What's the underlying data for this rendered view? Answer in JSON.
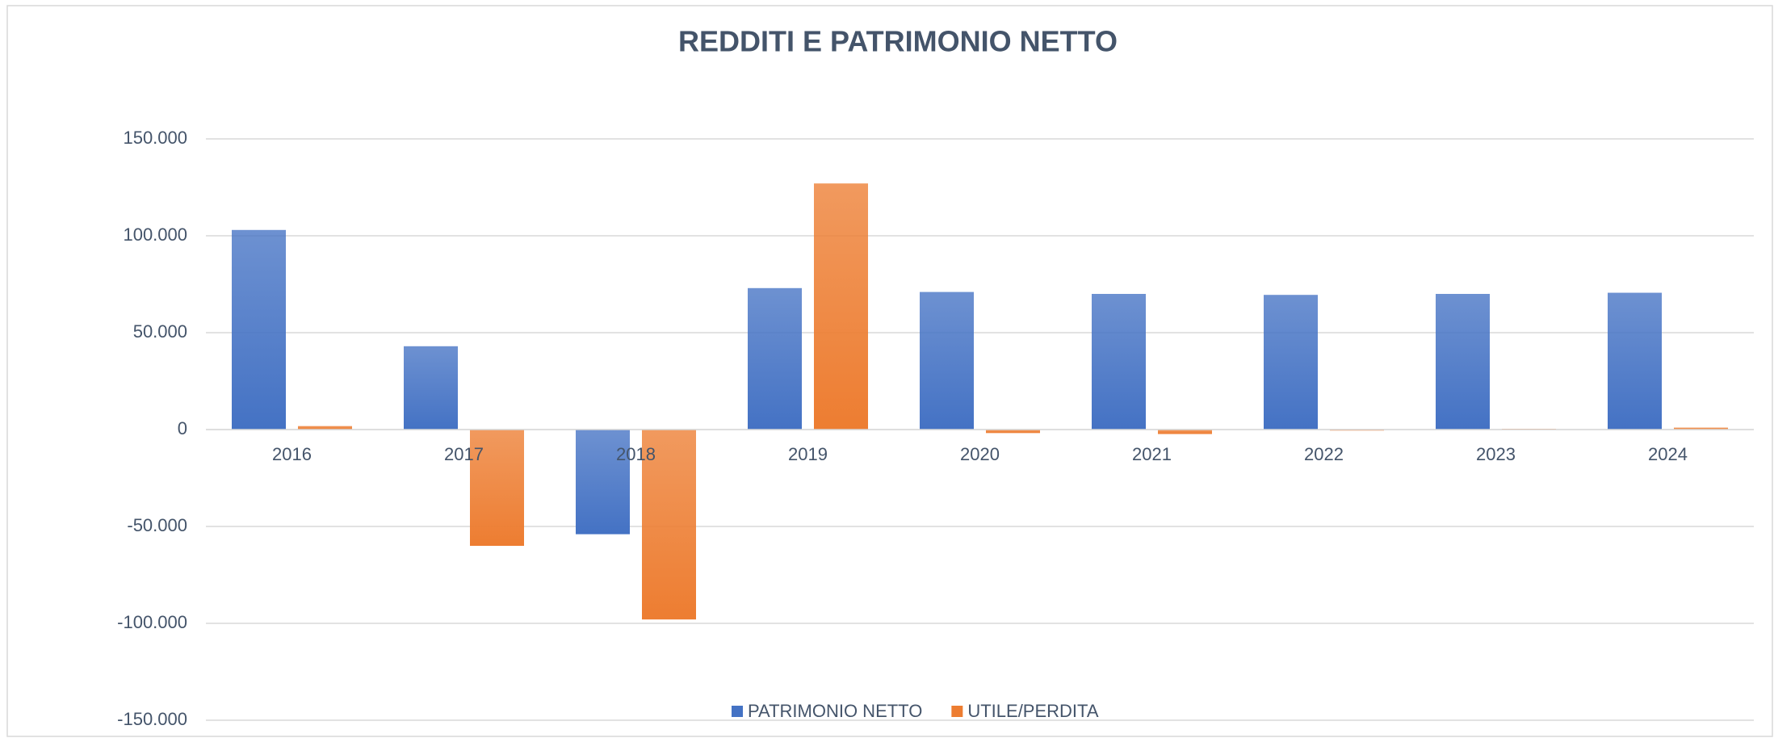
{
  "chart_data": {
    "type": "bar",
    "title": "REDDITI E PATRIMONIO NETTO",
    "categories": [
      "2016",
      "2017",
      "2018",
      "2019",
      "2020",
      "2021",
      "2022",
      "2023",
      "2024"
    ],
    "series": [
      {
        "name": "PATRIMONIO NETTO",
        "color": "#4472c4",
        "values": [
          103000,
          43000,
          -54000,
          73000,
          71000,
          70000,
          69500,
          70000,
          70600
        ]
      },
      {
        "name": "UTILE/PERDITA",
        "color": "#ed7d31",
        "values": [
          1800,
          -60000,
          -98000,
          127000,
          -1800,
          -2300,
          -500,
          400,
          1000
        ]
      }
    ],
    "ylim": [
      -150000,
      150000
    ],
    "yticks": [
      {
        "value": -150000,
        "label": "-150.000"
      },
      {
        "value": -100000,
        "label": "-100.000"
      },
      {
        "value": -50000,
        "label": "-50.000"
      },
      0,
      {
        "value": 50000,
        "label": "50.000"
      },
      {
        "value": 100000,
        "label": "100.000"
      },
      {
        "value": 150000,
        "label": "150.000"
      }
    ],
    "grid": true,
    "legend": "bottom"
  }
}
